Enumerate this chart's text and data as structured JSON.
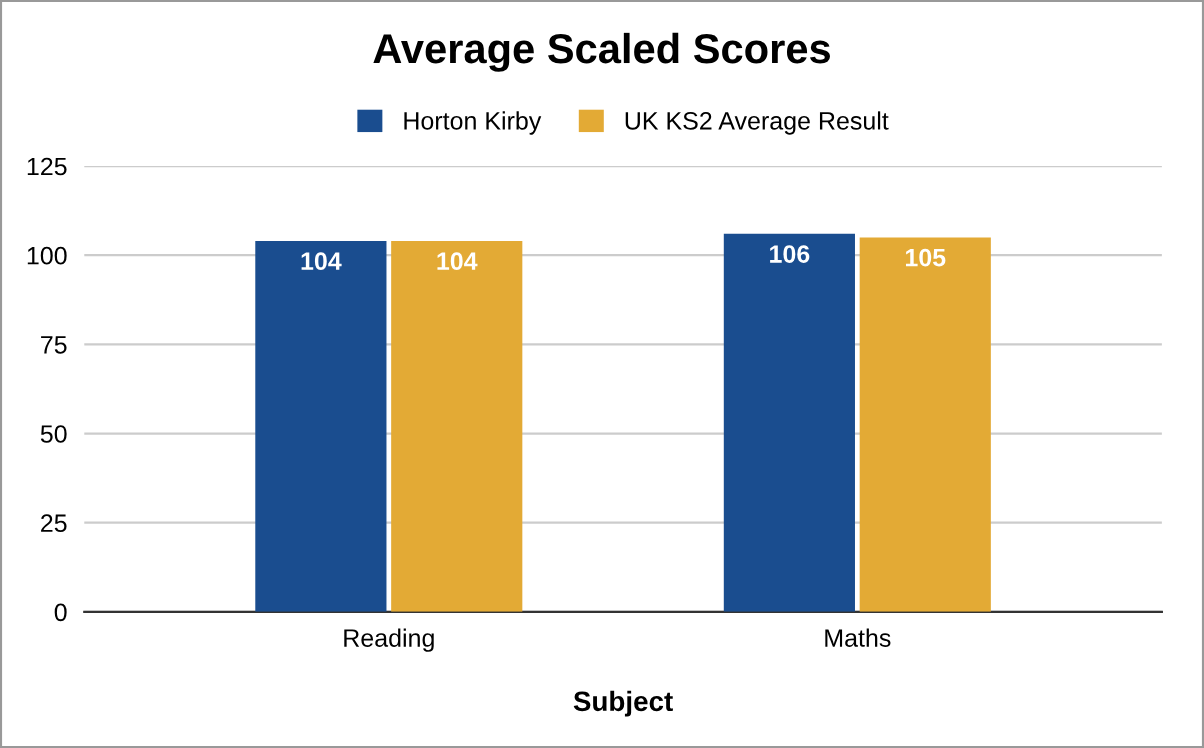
{
  "chart_data": {
    "type": "bar",
    "title": "Average Scaled Scores",
    "xlabel": "Subject",
    "categories": [
      "Reading",
      "Maths"
    ],
    "series": [
      {
        "name": "Horton Kirby",
        "color": "#1a4d8f",
        "values": [
          104,
          106
        ]
      },
      {
        "name": "UK KS2 Average Result",
        "color": "#e3aa35",
        "values": [
          104,
          105
        ]
      }
    ],
    "ylim": [
      0,
      125
    ],
    "yticks": [
      0,
      25,
      50,
      75,
      100,
      125
    ],
    "grid": "y",
    "legend": "top",
    "data_labels": true
  }
}
